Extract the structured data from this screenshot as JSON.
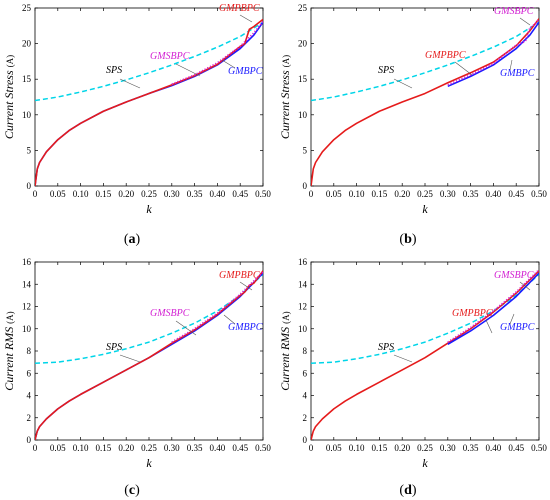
{
  "chart_data": [
    {
      "panel_label": "(a)",
      "type": "line",
      "xlabel": "k",
      "ylabel": "Current Stress",
      "yunit": "(A)",
      "xlim": [
        0,
        0.5
      ],
      "ylim": [
        0,
        25
      ],
      "xticks": [
        0,
        0.05,
        0.1,
        0.15,
        0.2,
        0.25,
        0.3,
        0.35,
        0.4,
        0.45,
        0.5
      ],
      "yticks": [
        0,
        5,
        10,
        15,
        20,
        25
      ],
      "series": [
        {
          "name": "SPS",
          "color": "#00d5e8",
          "style": "dashed",
          "x": [
            0,
            0.05,
            0.1,
            0.15,
            0.2,
            0.25,
            0.3,
            0.35,
            0.4,
            0.45,
            0.5
          ],
          "y": [
            12.0,
            12.5,
            13.2,
            14.0,
            14.9,
            15.9,
            17.0,
            18.2,
            19.5,
            21.0,
            23.0
          ]
        },
        {
          "name": "GMBPC",
          "color": "#1a1aff",
          "style": "solid",
          "x": [
            0,
            0.005,
            0.01,
            0.025,
            0.05,
            0.075,
            0.1,
            0.15,
            0.2,
            0.25,
            0.3,
            0.35,
            0.4,
            0.45,
            0.48,
            0.5
          ],
          "y": [
            0,
            2.4,
            3.3,
            4.8,
            6.5,
            7.8,
            8.8,
            10.5,
            11.8,
            13.0,
            14.1,
            15.4,
            17.0,
            19.3,
            21.2,
            23.0
          ]
        },
        {
          "name": "GMPBPC",
          "color": "#e51b1b",
          "style": "solid",
          "x": [
            0,
            0.005,
            0.01,
            0.025,
            0.05,
            0.075,
            0.1,
            0.15,
            0.2,
            0.25,
            0.3,
            0.35,
            0.4,
            0.45,
            0.46,
            0.47,
            0.48,
            0.5
          ],
          "y": [
            0,
            2.4,
            3.3,
            4.8,
            6.5,
            7.8,
            8.8,
            10.5,
            11.8,
            13.0,
            14.2,
            15.5,
            17.1,
            19.6,
            20.0,
            22.0,
            22.4,
            23.4
          ]
        },
        {
          "name": "GMSBPC",
          "color": "#d21ed2",
          "style": "dotted",
          "x": [
            0.3,
            0.35,
            0.4,
            0.45,
            0.48,
            0.5
          ],
          "y": [
            14.3,
            15.6,
            17.3,
            19.6,
            21.5,
            23.1
          ]
        }
      ],
      "annotations": [
        {
          "text": "SPS",
          "color": "#000000"
        },
        {
          "text": "GMSBPC",
          "color": "#d21ed2"
        },
        {
          "text": "GMBPC",
          "color": "#1a1aff"
        },
        {
          "text": "GMPBPC",
          "color": "#e51b1b"
        }
      ]
    },
    {
      "panel_label": "(b)",
      "type": "line",
      "xlabel": "k",
      "ylabel": "Current Stress",
      "yunit": "(A)",
      "xlim": [
        0,
        0.5
      ],
      "ylim": [
        0,
        25
      ],
      "xticks": [
        0,
        0.05,
        0.1,
        0.15,
        0.2,
        0.25,
        0.3,
        0.35,
        0.4,
        0.45,
        0.5
      ],
      "yticks": [
        0,
        5,
        10,
        15,
        20,
        25
      ],
      "series": [
        {
          "name": "SPS",
          "color": "#00d5e8",
          "style": "dashed",
          "x": [
            0,
            0.05,
            0.1,
            0.15,
            0.2,
            0.25,
            0.3,
            0.35,
            0.4,
            0.45,
            0.5
          ],
          "y": [
            12.0,
            12.5,
            13.2,
            14.0,
            14.9,
            15.9,
            17.0,
            18.2,
            19.5,
            21.0,
            23.0
          ]
        },
        {
          "name": "GMPBPC",
          "color": "#e51b1b",
          "style": "solid",
          "x": [
            0,
            0.005,
            0.01,
            0.025,
            0.05,
            0.075,
            0.1,
            0.15,
            0.2,
            0.25,
            0.3,
            0.35,
            0.4,
            0.45,
            0.48,
            0.5
          ],
          "y": [
            0,
            2.4,
            3.3,
            4.8,
            6.5,
            7.8,
            8.8,
            10.5,
            11.8,
            13.0,
            14.5,
            15.9,
            17.4,
            19.7,
            21.8,
            23.5
          ]
        },
        {
          "name": "GMBPC",
          "color": "#1a1aff",
          "style": "solid",
          "x": [
            0.3,
            0.35,
            0.4,
            0.45,
            0.48,
            0.5
          ],
          "y": [
            14.0,
            15.4,
            17.0,
            19.3,
            21.2,
            23.0
          ]
        },
        {
          "name": "GMSBPC",
          "color": "#d21ed2",
          "style": "dotted",
          "x": [
            0.3,
            0.35,
            0.4,
            0.45,
            0.47,
            0.48,
            0.49,
            0.5
          ],
          "y": [
            14.2,
            15.6,
            17.2,
            19.8,
            20.3,
            22.2,
            22.7,
            23.4
          ]
        }
      ],
      "annotations": [
        {
          "text": "SPS",
          "color": "#000000"
        },
        {
          "text": "GMPBPC",
          "color": "#e51b1b"
        },
        {
          "text": "GMBPC",
          "color": "#1a1aff"
        },
        {
          "text": "GMSBPC",
          "color": "#d21ed2"
        }
      ]
    },
    {
      "panel_label": "(c)",
      "type": "line",
      "xlabel": "k",
      "ylabel": "Current RMS",
      "yunit": "(A)",
      "xlim": [
        0,
        0.5
      ],
      "ylim": [
        0,
        16
      ],
      "xticks": [
        0,
        0.05,
        0.1,
        0.15,
        0.2,
        0.25,
        0.3,
        0.35,
        0.4,
        0.45,
        0.5
      ],
      "yticks": [
        0,
        2,
        4,
        6,
        8,
        10,
        12,
        14,
        16
      ],
      "series": [
        {
          "name": "SPS",
          "color": "#00d5e8",
          "style": "dashed",
          "x": [
            0,
            0.05,
            0.1,
            0.15,
            0.2,
            0.25,
            0.3,
            0.35,
            0.4,
            0.45,
            0.5
          ],
          "y": [
            6.9,
            7.0,
            7.3,
            7.7,
            8.2,
            8.8,
            9.6,
            10.5,
            11.6,
            13.0,
            14.9
          ]
        },
        {
          "name": "GMBPC",
          "color": "#1a1aff",
          "style": "solid",
          "x": [
            0,
            0.005,
            0.01,
            0.025,
            0.05,
            0.075,
            0.1,
            0.15,
            0.2,
            0.25,
            0.3,
            0.35,
            0.4,
            0.45,
            0.5
          ],
          "y": [
            0,
            0.8,
            1.2,
            1.9,
            2.8,
            3.5,
            4.1,
            5.2,
            6.3,
            7.4,
            8.6,
            9.8,
            11.2,
            12.9,
            15.0
          ]
        },
        {
          "name": "GMPBPC",
          "color": "#e51b1b",
          "style": "solid",
          "x": [
            0,
            0.005,
            0.01,
            0.025,
            0.05,
            0.075,
            0.1,
            0.15,
            0.2,
            0.25,
            0.3,
            0.35,
            0.4,
            0.45,
            0.46,
            0.47,
            0.48,
            0.5
          ],
          "y": [
            0,
            0.8,
            1.2,
            1.9,
            2.8,
            3.5,
            4.1,
            5.2,
            6.3,
            7.4,
            8.7,
            9.9,
            11.3,
            13.0,
            13.3,
            13.9,
            14.1,
            15.2
          ]
        },
        {
          "name": "GMSBPC",
          "color": "#d21ed2",
          "style": "dotted",
          "x": [
            0.3,
            0.35,
            0.4,
            0.45,
            0.5
          ],
          "y": [
            8.8,
            10.0,
            11.4,
            13.1,
            15.1
          ]
        }
      ],
      "annotations": [
        {
          "text": "SPS",
          "color": "#000000"
        },
        {
          "text": "GMSBPC",
          "color": "#d21ed2"
        },
        {
          "text": "GMBPC",
          "color": "#1a1aff"
        },
        {
          "text": "GMPBPC",
          "color": "#e51b1b"
        }
      ]
    },
    {
      "panel_label": "(d)",
      "type": "line",
      "xlabel": "k",
      "ylabel": "Current RMS",
      "yunit": "(A)",
      "xlim": [
        0,
        0.5
      ],
      "ylim": [
        0,
        16
      ],
      "xticks": [
        0,
        0.05,
        0.1,
        0.15,
        0.2,
        0.25,
        0.3,
        0.35,
        0.4,
        0.45,
        0.5
      ],
      "yticks": [
        0,
        2,
        4,
        6,
        8,
        10,
        12,
        14,
        16
      ],
      "series": [
        {
          "name": "SPS",
          "color": "#00d5e8",
          "style": "dashed",
          "x": [
            0,
            0.05,
            0.1,
            0.15,
            0.2,
            0.25,
            0.3,
            0.35,
            0.4,
            0.45,
            0.5
          ],
          "y": [
            6.9,
            7.0,
            7.3,
            7.7,
            8.2,
            8.8,
            9.6,
            10.5,
            11.6,
            13.0,
            14.9
          ]
        },
        {
          "name": "GMPBPC",
          "color": "#e51b1b",
          "style": "solid",
          "x": [
            0,
            0.005,
            0.01,
            0.025,
            0.05,
            0.075,
            0.1,
            0.15,
            0.2,
            0.25,
            0.3,
            0.35,
            0.4,
            0.45,
            0.5
          ],
          "y": [
            0,
            0.8,
            1.2,
            1.9,
            2.8,
            3.5,
            4.1,
            5.2,
            6.3,
            7.4,
            8.7,
            10.0,
            11.5,
            13.2,
            15.2
          ]
        },
        {
          "name": "GMBPC",
          "color": "#1a1aff",
          "style": "solid",
          "x": [
            0.3,
            0.35,
            0.4,
            0.45,
            0.5
          ],
          "y": [
            8.6,
            9.8,
            11.2,
            12.9,
            15.0
          ]
        },
        {
          "name": "GMSBPC",
          "color": "#d21ed2",
          "style": "dotted",
          "x": [
            0.3,
            0.35,
            0.4,
            0.45,
            0.5
          ],
          "y": [
            8.8,
            10.1,
            11.6,
            13.3,
            15.3
          ]
        }
      ],
      "annotations": [
        {
          "text": "SPS",
          "color": "#000000"
        },
        {
          "text": "GMPBPC",
          "color": "#e51b1b"
        },
        {
          "text": "GMBPC",
          "color": "#1a1aff"
        },
        {
          "text": "GMSBPC",
          "color": "#d21ed2"
        }
      ]
    }
  ]
}
